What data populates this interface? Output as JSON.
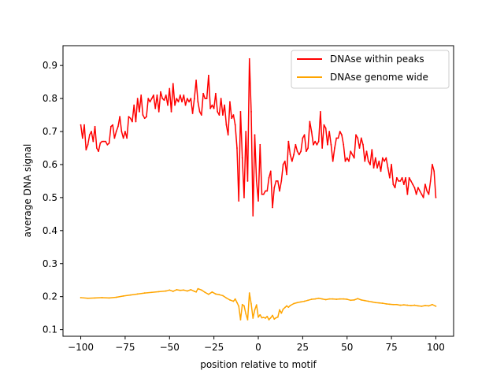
{
  "chart_data": {
    "type": "line",
    "title": "",
    "xlabel": "position relative to motif",
    "ylabel": "average DNA signal",
    "xlim": [
      -110,
      110
    ],
    "ylim": [
      0.08,
      0.96
    ],
    "xticks": [
      -100,
      -75,
      -50,
      -25,
      0,
      25,
      50,
      75,
      100
    ],
    "xtick_labels": [
      "−100",
      "−75",
      "−50",
      "−25",
      "0",
      "25",
      "50",
      "75",
      "100"
    ],
    "yticks": [
      0.1,
      0.2,
      0.3,
      0.4,
      0.5,
      0.6,
      0.7,
      0.8,
      0.9
    ],
    "ytick_labels": [
      "0.1",
      "0.2",
      "0.3",
      "0.4",
      "0.5",
      "0.6",
      "0.7",
      "0.8",
      "0.9"
    ],
    "grid": false,
    "legend_position": "top-right",
    "series": [
      {
        "name": "DNAse within peaks",
        "color": "#ff0000",
        "points": [
          [
            -100,
            0.72
          ],
          [
            -99,
            0.68
          ],
          [
            -98,
            0.72
          ],
          [
            -97,
            0.645
          ],
          [
            -96,
            0.66
          ],
          [
            -95,
            0.69
          ],
          [
            -94,
            0.7
          ],
          [
            -93,
            0.67
          ],
          [
            -92,
            0.715
          ],
          [
            -91,
            0.65
          ],
          [
            -90,
            0.64
          ],
          [
            -89,
            0.665
          ],
          [
            -88,
            0.67
          ],
          [
            -87,
            0.67
          ],
          [
            -86,
            0.67
          ],
          [
            -85,
            0.66
          ],
          [
            -84,
            0.665
          ],
          [
            -83,
            0.715
          ],
          [
            -82,
            0.72
          ],
          [
            -81,
            0.68
          ],
          [
            -80,
            0.7
          ],
          [
            -79,
            0.715
          ],
          [
            -78,
            0.745
          ],
          [
            -77,
            0.7
          ],
          [
            -76,
            0.68
          ],
          [
            -75,
            0.7
          ],
          [
            -74,
            0.68
          ],
          [
            -73,
            0.745
          ],
          [
            -72,
            0.74
          ],
          [
            -71,
            0.73
          ],
          [
            -70,
            0.78
          ],
          [
            -69,
            0.73
          ],
          [
            -68,
            0.8
          ],
          [
            -67,
            0.76
          ],
          [
            -66,
            0.81
          ],
          [
            -65,
            0.75
          ],
          [
            -64,
            0.74
          ],
          [
            -63,
            0.745
          ],
          [
            -62,
            0.8
          ],
          [
            -61,
            0.79
          ],
          [
            -60,
            0.8
          ],
          [
            -59,
            0.81
          ],
          [
            -58,
            0.77
          ],
          [
            -57,
            0.81
          ],
          [
            -56,
            0.76
          ],
          [
            -55,
            0.82
          ],
          [
            -54,
            0.8
          ],
          [
            -53,
            0.795
          ],
          [
            -52,
            0.81
          ],
          [
            -51,
            0.78
          ],
          [
            -50,
            0.83
          ],
          [
            -49,
            0.76
          ],
          [
            -48,
            0.845
          ],
          [
            -47,
            0.78
          ],
          [
            -46,
            0.8
          ],
          [
            -45,
            0.79
          ],
          [
            -44,
            0.81
          ],
          [
            -43,
            0.79
          ],
          [
            -42,
            0.81
          ],
          [
            -41,
            0.78
          ],
          [
            -40,
            0.8
          ],
          [
            -39,
            0.79
          ],
          [
            -38,
            0.8
          ],
          [
            -37,
            0.755
          ],
          [
            -36,
            0.8
          ],
          [
            -35,
            0.855
          ],
          [
            -34,
            0.79
          ],
          [
            -33,
            0.76
          ],
          [
            -32,
            0.75
          ],
          [
            -31,
            0.815
          ],
          [
            -30,
            0.8
          ],
          [
            -29,
            0.8
          ],
          [
            -28,
            0.87
          ],
          [
            -27,
            0.77
          ],
          [
            -26,
            0.78
          ],
          [
            -25,
            0.77
          ],
          [
            -24,
            0.815
          ],
          [
            -23,
            0.76
          ],
          [
            -22,
            0.75
          ],
          [
            -21,
            0.8
          ],
          [
            -20,
            0.75
          ],
          [
            -19,
            0.78
          ],
          [
            -18,
            0.72
          ],
          [
            -17,
            0.69
          ],
          [
            -16,
            0.79
          ],
          [
            -15,
            0.74
          ],
          [
            -14,
            0.75
          ],
          [
            -13,
            0.72
          ],
          [
            -12,
            0.65
          ],
          [
            -11,
            0.49
          ],
          [
            -10,
            0.76
          ],
          [
            -9,
            0.62
          ],
          [
            -8,
            0.5
          ],
          [
            -7,
            0.7
          ],
          [
            -6,
            0.55
          ],
          [
            -5,
            0.92
          ],
          [
            -4,
            0.76
          ],
          [
            -3,
            0.445
          ],
          [
            -2,
            0.69
          ],
          [
            -1,
            0.55
          ],
          [
            0,
            0.49
          ],
          [
            1,
            0.66
          ],
          [
            2,
            0.51
          ],
          [
            3,
            0.51
          ],
          [
            4,
            0.52
          ],
          [
            5,
            0.52
          ],
          [
            6,
            0.56
          ],
          [
            7,
            0.58
          ],
          [
            8,
            0.47
          ],
          [
            9,
            0.53
          ],
          [
            10,
            0.55
          ],
          [
            11,
            0.55
          ],
          [
            12,
            0.52
          ],
          [
            13,
            0.55
          ],
          [
            14,
            0.6
          ],
          [
            15,
            0.61
          ],
          [
            16,
            0.57
          ],
          [
            17,
            0.67
          ],
          [
            18,
            0.63
          ],
          [
            19,
            0.61
          ],
          [
            20,
            0.63
          ],
          [
            21,
            0.66
          ],
          [
            22,
            0.64
          ],
          [
            23,
            0.63
          ],
          [
            24,
            0.64
          ],
          [
            25,
            0.68
          ],
          [
            26,
            0.69
          ],
          [
            27,
            0.64
          ],
          [
            28,
            0.65
          ],
          [
            29,
            0.73
          ],
          [
            30,
            0.7
          ],
          [
            31,
            0.66
          ],
          [
            32,
            0.67
          ],
          [
            33,
            0.66
          ],
          [
            34,
            0.67
          ],
          [
            35,
            0.76
          ],
          [
            36,
            0.65
          ],
          [
            37,
            0.72
          ],
          [
            38,
            0.71
          ],
          [
            39,
            0.66
          ],
          [
            40,
            0.7
          ],
          [
            41,
            0.66
          ],
          [
            42,
            0.61
          ],
          [
            43,
            0.65
          ],
          [
            44,
            0.68
          ],
          [
            45,
            0.68
          ],
          [
            46,
            0.7
          ],
          [
            47,
            0.69
          ],
          [
            48,
            0.66
          ],
          [
            49,
            0.61
          ],
          [
            50,
            0.62
          ],
          [
            51,
            0.61
          ],
          [
            52,
            0.64
          ],
          [
            53,
            0.63
          ],
          [
            54,
            0.62
          ],
          [
            55,
            0.69
          ],
          [
            56,
            0.68
          ],
          [
            57,
            0.65
          ],
          [
            58,
            0.68
          ],
          [
            59,
            0.66
          ],
          [
            60,
            0.61
          ],
          [
            61,
            0.64
          ],
          [
            62,
            0.61
          ],
          [
            63,
            0.6
          ],
          [
            64,
            0.645
          ],
          [
            65,
            0.59
          ],
          [
            66,
            0.62
          ],
          [
            67,
            0.59
          ],
          [
            68,
            0.61
          ],
          [
            69,
            0.58
          ],
          [
            70,
            0.62
          ],
          [
            71,
            0.61
          ],
          [
            72,
            0.62
          ],
          [
            73,
            0.59
          ],
          [
            74,
            0.56
          ],
          [
            75,
            0.6
          ],
          [
            76,
            0.54
          ],
          [
            77,
            0.53
          ],
          [
            78,
            0.56
          ],
          [
            79,
            0.55
          ],
          [
            80,
            0.55
          ],
          [
            81,
            0.56
          ],
          [
            82,
            0.54
          ],
          [
            83,
            0.56
          ],
          [
            84,
            0.51
          ],
          [
            85,
            0.56
          ],
          [
            86,
            0.55
          ],
          [
            87,
            0.54
          ],
          [
            88,
            0.53
          ],
          [
            89,
            0.51
          ],
          [
            90,
            0.53
          ],
          [
            91,
            0.52
          ],
          [
            92,
            0.51
          ],
          [
            93,
            0.5
          ],
          [
            94,
            0.54
          ],
          [
            95,
            0.52
          ],
          [
            96,
            0.51
          ],
          [
            97,
            0.55
          ],
          [
            98,
            0.6
          ],
          [
            99,
            0.58
          ],
          [
            100,
            0.5
          ]
        ]
      },
      {
        "name": "DNAse genome wide",
        "color": "#ffa500",
        "points": [
          [
            -100,
            0.197
          ],
          [
            -96,
            0.195
          ],
          [
            -92,
            0.196
          ],
          [
            -88,
            0.197
          ],
          [
            -84,
            0.196
          ],
          [
            -80,
            0.198
          ],
          [
            -76,
            0.202
          ],
          [
            -72,
            0.205
          ],
          [
            -68,
            0.208
          ],
          [
            -64,
            0.211
          ],
          [
            -60,
            0.213
          ],
          [
            -56,
            0.215
          ],
          [
            -52,
            0.217
          ],
          [
            -50,
            0.22
          ],
          [
            -48,
            0.216
          ],
          [
            -46,
            0.221
          ],
          [
            -44,
            0.219
          ],
          [
            -42,
            0.22
          ],
          [
            -40,
            0.217
          ],
          [
            -38,
            0.221
          ],
          [
            -36,
            0.216
          ],
          [
            -35,
            0.214
          ],
          [
            -34,
            0.224
          ],
          [
            -32,
            0.22
          ],
          [
            -30,
            0.213
          ],
          [
            -28,
            0.207
          ],
          [
            -26,
            0.214
          ],
          [
            -24,
            0.208
          ],
          [
            -22,
            0.206
          ],
          [
            -20,
            0.203
          ],
          [
            -18,
            0.196
          ],
          [
            -16,
            0.19
          ],
          [
            -14,
            0.186
          ],
          [
            -13,
            0.193
          ],
          [
            -12,
            0.182
          ],
          [
            -11,
            0.171
          ],
          [
            -10,
            0.13
          ],
          [
            -9,
            0.176
          ],
          [
            -8,
            0.172
          ],
          [
            -7,
            0.148
          ],
          [
            -6,
            0.13
          ],
          [
            -5,
            0.211
          ],
          [
            -4,
            0.178
          ],
          [
            -3,
            0.135
          ],
          [
            -2,
            0.16
          ],
          [
            -1,
            0.175
          ],
          [
            0,
            0.138
          ],
          [
            1,
            0.145
          ],
          [
            2,
            0.136
          ],
          [
            3,
            0.137
          ],
          [
            4,
            0.135
          ],
          [
            5,
            0.14
          ],
          [
            6,
            0.13
          ],
          [
            7,
            0.136
          ],
          [
            8,
            0.143
          ],
          [
            9,
            0.132
          ],
          [
            10,
            0.136
          ],
          [
            11,
            0.138
          ],
          [
            12,
            0.16
          ],
          [
            13,
            0.15
          ],
          [
            14,
            0.162
          ],
          [
            15,
            0.167
          ],
          [
            16,
            0.172
          ],
          [
            17,
            0.168
          ],
          [
            18,
            0.173
          ],
          [
            20,
            0.179
          ],
          [
            22,
            0.182
          ],
          [
            24,
            0.184
          ],
          [
            26,
            0.186
          ],
          [
            28,
            0.189
          ],
          [
            30,
            0.192
          ],
          [
            32,
            0.193
          ],
          [
            34,
            0.195
          ],
          [
            36,
            0.193
          ],
          [
            38,
            0.191
          ],
          [
            40,
            0.193
          ],
          [
            42,
            0.193
          ],
          [
            44,
            0.192
          ],
          [
            46,
            0.193
          ],
          [
            48,
            0.193
          ],
          [
            50,
            0.192
          ],
          [
            52,
            0.189
          ],
          [
            54,
            0.19
          ],
          [
            56,
            0.194
          ],
          [
            58,
            0.19
          ],
          [
            60,
            0.188
          ],
          [
            62,
            0.186
          ],
          [
            64,
            0.184
          ],
          [
            66,
            0.182
          ],
          [
            68,
            0.181
          ],
          [
            70,
            0.18
          ],
          [
            72,
            0.178
          ],
          [
            74,
            0.177
          ],
          [
            76,
            0.176
          ],
          [
            78,
            0.176
          ],
          [
            80,
            0.174
          ],
          [
            82,
            0.175
          ],
          [
            84,
            0.174
          ],
          [
            86,
            0.173
          ],
          [
            88,
            0.174
          ],
          [
            90,
            0.172
          ],
          [
            92,
            0.171
          ],
          [
            94,
            0.173
          ],
          [
            96,
            0.172
          ],
          [
            98,
            0.176
          ],
          [
            100,
            0.171
          ]
        ]
      }
    ]
  }
}
